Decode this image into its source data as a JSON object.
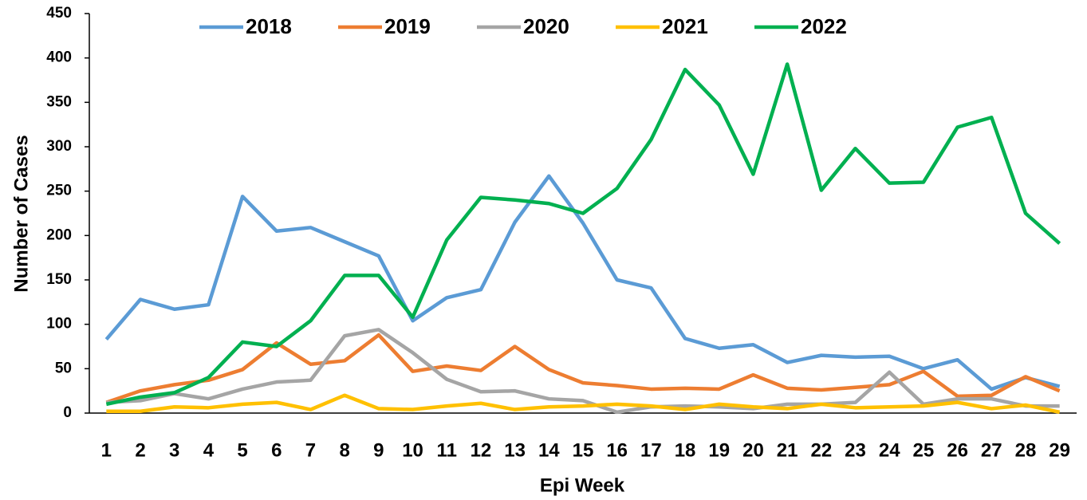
{
  "chart_data": {
    "type": "line",
    "x_label": "Epi Week",
    "y_label": "Number of Cases",
    "categories": [
      "1",
      "2",
      "3",
      "4",
      "5",
      "6",
      "7",
      "8",
      "9",
      "10",
      "11",
      "12",
      "13",
      "14",
      "15",
      "16",
      "17",
      "18",
      "19",
      "20",
      "21",
      "22",
      "23",
      "24",
      "25",
      "26",
      "27",
      "28",
      "29"
    ],
    "series": [
      {
        "name": "2018",
        "color": "#5b9bd5",
        "values": [
          83,
          128,
          117,
          122,
          244,
          205,
          209,
          193,
          177,
          104,
          130,
          139,
          215,
          267,
          214,
          150,
          141,
          84,
          73,
          77,
          57,
          65,
          63,
          64,
          50,
          60,
          27,
          40,
          30
        ]
      },
      {
        "name": "2019",
        "color": "#ed7d31",
        "values": [
          12,
          25,
          32,
          37,
          49,
          79,
          55,
          59,
          88,
          47,
          53,
          48,
          75,
          49,
          34,
          31,
          27,
          28,
          27,
          43,
          28,
          26,
          29,
          32,
          47,
          19,
          20,
          41,
          25
        ]
      },
      {
        "name": "2020",
        "color": "#a5a5a5",
        "values": [
          12,
          14,
          22,
          16,
          27,
          35,
          37,
          87,
          94,
          68,
          38,
          24,
          25,
          16,
          14,
          1,
          7,
          8,
          7,
          5,
          10,
          10,
          12,
          46,
          10,
          16,
          16,
          8,
          8
        ]
      },
      {
        "name": "2021",
        "color": "#ffc000",
        "values": [
          2,
          2,
          7,
          6,
          10,
          12,
          4,
          20,
          5,
          4,
          8,
          11,
          4,
          7,
          8,
          10,
          8,
          4,
          10,
          7,
          5,
          10,
          6,
          7,
          8,
          12,
          5,
          9,
          1
        ]
      },
      {
        "name": "2022",
        "color": "#00b050",
        "values": [
          10,
          18,
          23,
          40,
          80,
          75,
          104,
          155,
          155,
          108,
          195,
          243,
          240,
          236,
          225,
          253,
          308,
          387,
          347,
          269,
          393,
          251,
          298,
          259,
          260,
          322,
          333,
          225,
          191
        ]
      }
    ],
    "ylim": [
      0,
      450
    ],
    "yticks": [
      0,
      50,
      100,
      150,
      200,
      250,
      300,
      350,
      400,
      450
    ],
    "grid": false,
    "legend": "top"
  }
}
